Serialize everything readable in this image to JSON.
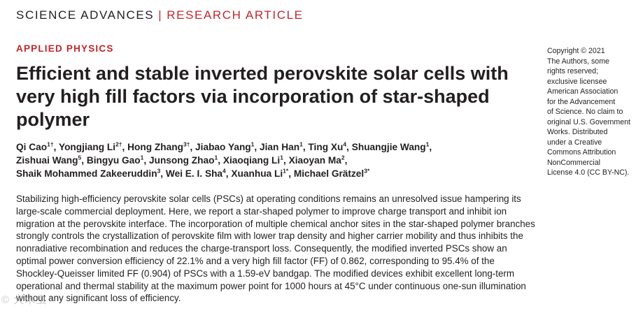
{
  "header": {
    "journal": "SCIENCE ADVANCES",
    "separator": "|",
    "article_type": "RESEARCH ARTICLE"
  },
  "section": "APPLIED PHYSICS",
  "title": "Efficient and stable inverted perovskite solar cells with very high fill factors via incorporation of star-shaped polymer",
  "authors": [
    {
      "name": "Qi Cao",
      "aff": "1†"
    },
    {
      "name": "Yongjiang Li",
      "aff": "2†"
    },
    {
      "name": "Hong Zhang",
      "aff": "3†"
    },
    {
      "name": "Jiabao Yang",
      "aff": "1"
    },
    {
      "name": "Jian Han",
      "aff": "1"
    },
    {
      "name": "Ting Xu",
      "aff": "4"
    },
    {
      "name": "Shuangjie Wang",
      "aff": "1"
    },
    {
      "name": "Zishuai Wang",
      "aff": "5"
    },
    {
      "name": "Bingyu Gao",
      "aff": "1"
    },
    {
      "name": "Junsong Zhao",
      "aff": "1"
    },
    {
      "name": "Xiaoqiang Li",
      "aff": "1"
    },
    {
      "name": "Xiaoyan Ma",
      "aff": "2"
    },
    {
      "name": "Shaik Mohammed Zakeeruddin",
      "aff": "3"
    },
    {
      "name": "Wei E. I. Sha",
      "aff": "4"
    },
    {
      "name": "Xuanhua Li",
      "aff": "1*"
    },
    {
      "name": "Michael Grätzel",
      "aff": "3*"
    }
  ],
  "abstract": "Stabilizing high-efficiency perovskite solar cells (PSCs) at operating conditions remains an unresolved issue hampering its large-scale commercial deployment. Here, we report a star-shaped polymer to improve charge transport and inhibit ion migration at the perovskite interface. The incorporation of multiple chemical anchor sites in the star-shaped polymer branches strongly controls the crystallization of perovskite film with lower trap density and higher carrier mobility and thus inhibits the nonradiative recombination and reduces the charge-transport loss. Consequently, the modified inverted PSCs show an optimal power conversion efficiency of 22.1% and a very high fill factor (FF) of 0.862, corresponding to 95.4% of the Shockley-Queisser limited FF (0.904) of PSCs with a 1.59-eV bandgap. The modified devices exhibit excellent long-term operational and thermal stability at the maximum power point for 1000 hours at 45°C under continuous one-sun illumination without any significant loss of efficiency.",
  "copyright_lines": [
    "Copyright © 2021",
    "The Authors, some",
    "rights reserved;",
    "exclusive licensee",
    "American Association",
    "for the Advancement",
    "of Science. No claim to",
    "original U.S. Government",
    "Works. Distributed",
    "under a Creative",
    "Commons Attribution",
    "NonCommercial",
    "License 4.0 (CC BY-NC)."
  ],
  "watermark": "© 大木虫",
  "colors": {
    "accent_red": "#c0272d",
    "text": "#231f20"
  }
}
